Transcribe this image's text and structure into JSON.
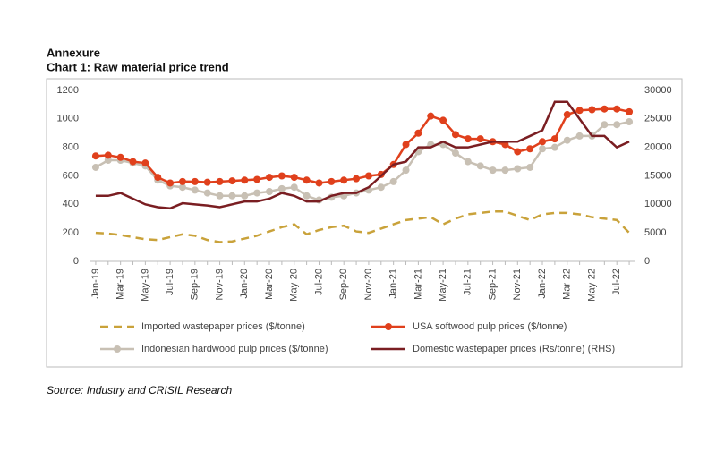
{
  "header": {
    "title": "Annexure",
    "subtitle": "Chart 1: Raw material price trend"
  },
  "source": "Source: Industry and CRISIL Research",
  "chart_data": {
    "type": "line",
    "categories": [
      "Jan-19",
      null,
      "Mar-19",
      null,
      "May-19",
      null,
      "Jul-19",
      null,
      "Sep-19",
      null,
      "Nov-19",
      null,
      "Jan-20",
      null,
      "Mar-20",
      null,
      "May-20",
      null,
      "Jul-20",
      null,
      "Sep-20",
      null,
      "Nov-20",
      null,
      "Jan-21",
      null,
      "Mar-21",
      null,
      "May-21",
      null,
      "Jul-21",
      null,
      "Sep-21",
      null,
      "Nov-21",
      null,
      "Jan-22",
      null,
      "Mar-22",
      null,
      "May-22",
      null,
      "Jul-22",
      null
    ],
    "ylim": [
      0,
      1200
    ],
    "yticks": [
      0,
      200,
      400,
      600,
      800,
      1000,
      1200
    ],
    "y2lim": [
      0,
      30000
    ],
    "y2ticks": [
      0,
      5000,
      10000,
      15000,
      20000,
      25000,
      30000
    ],
    "series": [
      {
        "name": "Imported wastepaper prices ($/tonne)",
        "color": "#c9a23a",
        "style": "dashed",
        "values": [
          200,
          195,
          185,
          170,
          155,
          150,
          170,
          190,
          180,
          150,
          135,
          140,
          160,
          180,
          210,
          240,
          260,
          190,
          220,
          240,
          250,
          210,
          200,
          230,
          260,
          290,
          300,
          310,
          260,
          300,
          330,
          340,
          350,
          350,
          320,
          290,
          330,
          340,
          340,
          330,
          310,
          300,
          290,
          200
        ]
      },
      {
        "name": "USA softwood pulp prices ($/tonne)",
        "color": "#e0401c",
        "style": "markers",
        "values": [
          740,
          745,
          730,
          700,
          690,
          590,
          550,
          560,
          560,
          555,
          560,
          565,
          570,
          575,
          590,
          600,
          590,
          570,
          550,
          560,
          570,
          580,
          600,
          610,
          680,
          820,
          900,
          1020,
          990,
          890,
          860,
          860,
          840,
          820,
          770,
          790,
          840,
          860,
          1030,
          1060,
          1065,
          1070,
          1070,
          1050
        ]
      },
      {
        "name": "Indonesian hardwood pulp prices ($/tonne)",
        "color": "#c8c0b4",
        "style": "markers",
        "values": [
          660,
          710,
          710,
          690,
          670,
          570,
          530,
          520,
          500,
          480,
          460,
          460,
          460,
          480,
          490,
          510,
          520,
          460,
          430,
          450,
          460,
          480,
          500,
          520,
          560,
          640,
          770,
          820,
          820,
          760,
          700,
          670,
          640,
          640,
          650,
          660,
          790,
          800,
          850,
          880,
          880,
          960,
          960,
          980
        ]
      },
      {
        "name": "Domestic wastepaper prices (Rs/tonne) (RHS)",
        "color": "#7a1e22",
        "style": "solid",
        "axis": "y2",
        "values": [
          11500,
          11500,
          12000,
          11000,
          10000,
          9500,
          9300,
          10200,
          10000,
          9800,
          9500,
          10000,
          10500,
          10500,
          11000,
          12000,
          11500,
          10500,
          10500,
          11500,
          12000,
          12000,
          13000,
          15000,
          17000,
          17500,
          20000,
          20000,
          21000,
          20000,
          20000,
          20500,
          21000,
          21000,
          21000,
          22000,
          23000,
          28000,
          28000,
          25000,
          22000,
          22000,
          20000,
          21000
        ]
      }
    ]
  }
}
